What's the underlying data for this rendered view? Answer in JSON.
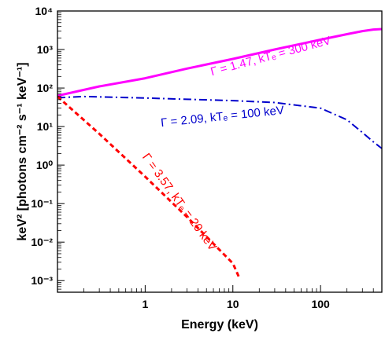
{
  "chart_data": {
    "type": "line",
    "xlabel": "Energy (keV)",
    "ylabel": "keV² [photons cm⁻² s⁻¹ keV⁻¹]",
    "xscale": "log",
    "yscale": "log",
    "xlim": [
      0.1,
      500
    ],
    "ylim": [
      0.0005,
      10000
    ],
    "x_ticks": [
      {
        "value": 1,
        "label": "1"
      },
      {
        "value": 10,
        "label": "10"
      },
      {
        "value": 100,
        "label": "100"
      }
    ],
    "y_ticks": [
      {
        "value": 0.001,
        "label": "10⁻³"
      },
      {
        "value": 0.01,
        "label": "10⁻²"
      },
      {
        "value": 0.1,
        "label": "10⁻¹"
      },
      {
        "value": 1,
        "label": "10⁰"
      },
      {
        "value": 10,
        "label": "10¹"
      },
      {
        "value": 100,
        "label": "10²"
      },
      {
        "value": 1000,
        "label": "10³"
      },
      {
        "value": 10000,
        "label": "10⁴"
      }
    ],
    "grid": false,
    "legend": "none",
    "series": [
      {
        "label": "Γ = 1.47, kTₑ = 300 keV",
        "color": "#ff00ff",
        "style": "solid",
        "x": [
          0.1,
          0.3,
          1,
          3,
          10,
          30,
          100,
          200,
          300,
          400,
          500
        ],
        "y": [
          63,
          110,
          180,
          320,
          570,
          1000,
          1800,
          2500,
          3000,
          3300,
          3400
        ]
      },
      {
        "label": "Γ = 2.09, kTₑ = 100 keV",
        "color": "#0000cc",
        "style": "dashdot",
        "x": [
          0.1,
          0.2,
          0.3,
          1,
          3,
          10,
          30,
          100,
          200,
          300,
          400,
          500
        ],
        "y": [
          56,
          60,
          59,
          55,
          51,
          47,
          42,
          30,
          15,
          7,
          4,
          2.7
        ]
      },
      {
        "label": "Γ = 3.57, kTₑ = 20 keV",
        "color": "#ff0000",
        "style": "dashed",
        "x": [
          0.1,
          0.3,
          1,
          3,
          10,
          12
        ],
        "y": [
          60,
          6.5,
          0.5,
          0.045,
          0.0028,
          0.0011
        ]
      }
    ]
  }
}
